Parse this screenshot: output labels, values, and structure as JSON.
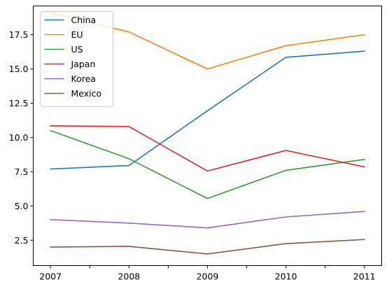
{
  "chart_data": {
    "type": "line",
    "title": "",
    "xlabel": "",
    "ylabel": "",
    "x": [
      2007,
      2008,
      2009,
      2010,
      2011
    ],
    "xticks": [
      "2007",
      "2008",
      "2009",
      "2010",
      "2011"
    ],
    "xlim": [
      2006.78,
      2011.22
    ],
    "ylim": [
      0.65,
      19.6
    ],
    "yticks": [
      "2.5",
      "5.0",
      "7.5",
      "10.0",
      "12.5",
      "15.0",
      "17.5"
    ],
    "grid": false,
    "legend_position": "top-left",
    "series": [
      {
        "name": "China",
        "color": "#1f77b4",
        "values": [
          7.7,
          7.95,
          11.95,
          15.85,
          16.3
        ]
      },
      {
        "name": "EU",
        "color": "#ff7f0e",
        "values": [
          19.1,
          17.7,
          15.0,
          16.7,
          17.5
        ]
      },
      {
        "name": "US",
        "color": "#2ca02c",
        "values": [
          10.5,
          8.45,
          5.55,
          7.6,
          8.4
        ]
      },
      {
        "name": "Japan",
        "color": "#d62728",
        "values": [
          10.85,
          10.8,
          7.55,
          9.05,
          7.85
        ]
      },
      {
        "name": "Korea",
        "color": "#9467bd",
        "values": [
          4.0,
          3.75,
          3.4,
          4.2,
          4.6
        ]
      },
      {
        "name": "Mexico",
        "color": "#8c564b",
        "values": [
          2.0,
          2.05,
          1.5,
          2.25,
          2.55
        ]
      }
    ]
  }
}
